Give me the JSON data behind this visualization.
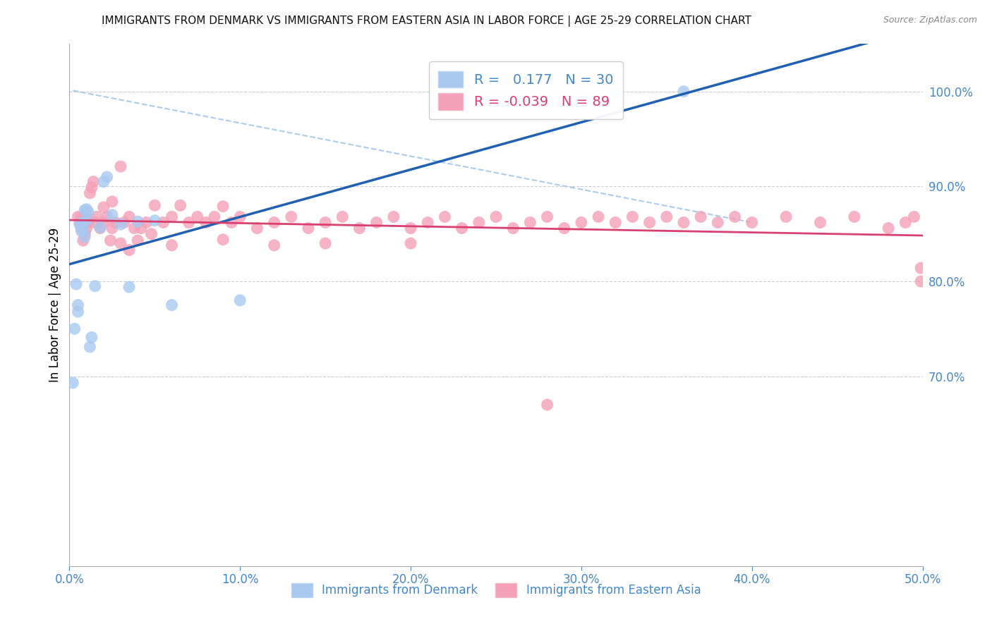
{
  "title": "IMMIGRANTS FROM DENMARK VS IMMIGRANTS FROM EASTERN ASIA IN LABOR FORCE | AGE 25-29 CORRELATION CHART",
  "source": "Source: ZipAtlas.com",
  "ylabel": "In Labor Force | Age 25-29",
  "R_denmark": 0.177,
  "N_denmark": 30,
  "R_eastern_asia": -0.039,
  "N_eastern_asia": 89,
  "denmark_color": "#a8c8f0",
  "eastern_asia_color": "#f4a0b8",
  "denmark_line_color": "#2060b0",
  "eastern_asia_line_color": "#d84070",
  "tick_label_color": "#4488cc",
  "xlim": [
    0.0,
    0.5
  ],
  "ylim": [
    0.5,
    1.05
  ],
  "dk_x": [
    0.002,
    0.003,
    0.004,
    0.005,
    0.005,
    0.006,
    0.007,
    0.007,
    0.008,
    0.008,
    0.009,
    0.009,
    0.01,
    0.01,
    0.011,
    0.012,
    0.013,
    0.015,
    0.018,
    0.02,
    0.022,
    0.025,
    0.03,
    0.035,
    0.04,
    0.05,
    0.06,
    0.1,
    0.32,
    0.36
  ],
  "dk_y": [
    0.693,
    0.75,
    0.797,
    0.768,
    0.775,
    0.86,
    0.853,
    0.861,
    0.856,
    0.862,
    0.847,
    0.875,
    0.864,
    0.876,
    0.873,
    0.731,
    0.741,
    0.795,
    0.857,
    0.905,
    0.91,
    0.87,
    0.86,
    0.794,
    0.863,
    0.864,
    0.775,
    0.78,
    0.997,
    1.0
  ],
  "ea_x": [
    0.005,
    0.006,
    0.007,
    0.007,
    0.008,
    0.008,
    0.009,
    0.009,
    0.01,
    0.01,
    0.011,
    0.012,
    0.013,
    0.014,
    0.015,
    0.016,
    0.018,
    0.02,
    0.022,
    0.024,
    0.025,
    0.027,
    0.03,
    0.032,
    0.035,
    0.038,
    0.04,
    0.042,
    0.045,
    0.048,
    0.05,
    0.055,
    0.06,
    0.065,
    0.07,
    0.075,
    0.08,
    0.085,
    0.09,
    0.095,
    0.1,
    0.11,
    0.12,
    0.13,
    0.14,
    0.15,
    0.16,
    0.17,
    0.18,
    0.19,
    0.2,
    0.21,
    0.22,
    0.23,
    0.24,
    0.25,
    0.26,
    0.27,
    0.28,
    0.29,
    0.3,
    0.31,
    0.32,
    0.33,
    0.34,
    0.35,
    0.36,
    0.37,
    0.38,
    0.39,
    0.4,
    0.42,
    0.44,
    0.46,
    0.48,
    0.49,
    0.495,
    0.499,
    0.02,
    0.025,
    0.03,
    0.035,
    0.06,
    0.09,
    0.12,
    0.15,
    0.2,
    0.28,
    0.499
  ],
  "ea_y": [
    0.868,
    0.862,
    0.856,
    0.868,
    0.843,
    0.862,
    0.85,
    0.862,
    0.868,
    0.856,
    0.862,
    0.893,
    0.899,
    0.905,
    0.862,
    0.868,
    0.856,
    0.862,
    0.868,
    0.843,
    0.856,
    0.862,
    0.921,
    0.862,
    0.868,
    0.856,
    0.843,
    0.856,
    0.862,
    0.85,
    0.88,
    0.862,
    0.868,
    0.88,
    0.862,
    0.868,
    0.862,
    0.868,
    0.879,
    0.862,
    0.868,
    0.856,
    0.862,
    0.868,
    0.856,
    0.862,
    0.868,
    0.856,
    0.862,
    0.868,
    0.856,
    0.862,
    0.868,
    0.856,
    0.862,
    0.868,
    0.856,
    0.862,
    0.868,
    0.856,
    0.862,
    0.868,
    0.862,
    0.868,
    0.862,
    0.868,
    0.862,
    0.868,
    0.862,
    0.868,
    0.862,
    0.868,
    0.862,
    0.868,
    0.856,
    0.862,
    0.868,
    0.8,
    0.878,
    0.884,
    0.84,
    0.833,
    0.838,
    0.844,
    0.838,
    0.84,
    0.84,
    0.67,
    0.814
  ],
  "ref_line_x": [
    0.002,
    0.4
  ],
  "ref_line_y": [
    1.001,
    0.862
  ]
}
